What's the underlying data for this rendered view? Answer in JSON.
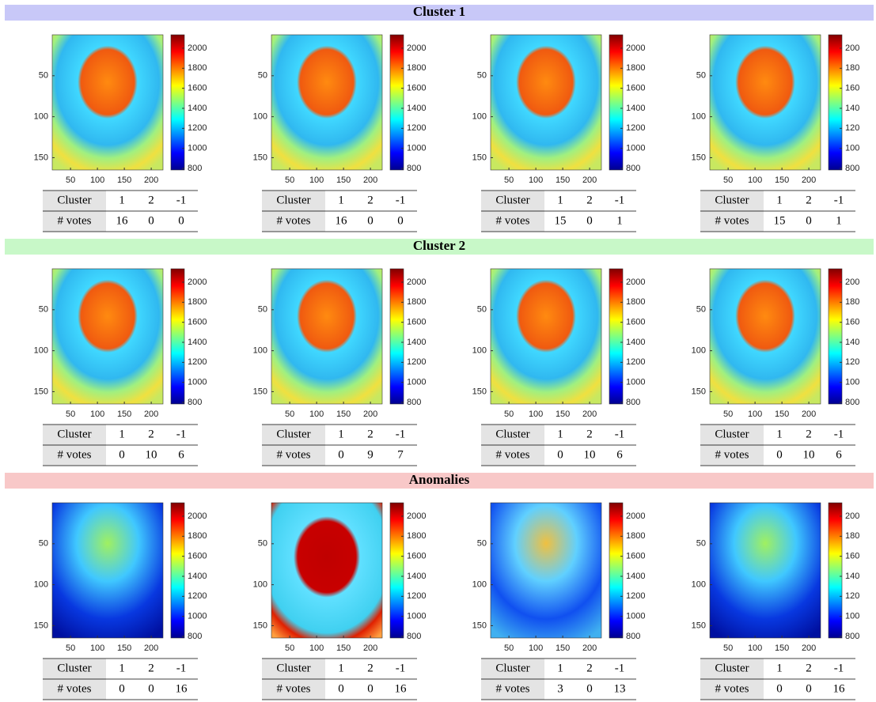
{
  "image_xticks": [
    50,
    100,
    150,
    200
  ],
  "image_yticks": [
    50,
    100,
    150
  ],
  "sections": [
    {
      "title": "Cluster 1",
      "panels": [
        {
          "colorbar_ticks": [
            2000,
            1800,
            1600,
            1400,
            1200,
            1000,
            800
          ],
          "table": {
            "header": [
              "Cluster",
              "1",
              "2",
              "-1"
            ],
            "votes": [
              "# votes",
              "16",
              "0",
              "0"
            ]
          }
        },
        {
          "colorbar_ticks": [
            2000,
            1800,
            1600,
            1400,
            1200,
            1000,
            800
          ],
          "table": {
            "header": [
              "Cluster",
              "1",
              "2",
              "-1"
            ],
            "votes": [
              "# votes",
              "16",
              "0",
              "0"
            ]
          }
        },
        {
          "colorbar_ticks": [
            2000,
            1800,
            1600,
            1400,
            1200,
            1000,
            800
          ],
          "table": {
            "header": [
              "Cluster",
              "1",
              "2",
              "-1"
            ],
            "votes": [
              "# votes",
              "15",
              "0",
              "1"
            ]
          }
        },
        {
          "colorbar_ticks": [
            200,
            180,
            160,
            140,
            120,
            100,
            800
          ],
          "table": {
            "header": [
              "Cluster",
              "1",
              "2",
              "-1"
            ],
            "votes": [
              "# votes",
              "15",
              "0",
              "1"
            ]
          }
        }
      ]
    },
    {
      "title": "Cluster 2",
      "panels": [
        {
          "colorbar_ticks": [
            2000,
            1800,
            1600,
            1400,
            1200,
            1000,
            800
          ],
          "table": {
            "header": [
              "Cluster",
              "1",
              "2",
              "-1"
            ],
            "votes": [
              "# votes",
              "0",
              "10",
              "6"
            ]
          }
        },
        {
          "colorbar_ticks": [
            2000,
            1800,
            1600,
            1400,
            1200,
            1000,
            800
          ],
          "table": {
            "header": [
              "Cluster",
              "1",
              "2",
              "-1"
            ],
            "votes": [
              "# votes",
              "0",
              "9",
              "7"
            ]
          }
        },
        {
          "colorbar_ticks": [
            2000,
            1800,
            1600,
            1400,
            1200,
            1000,
            800
          ],
          "table": {
            "header": [
              "Cluster",
              "1",
              "2",
              "-1"
            ],
            "votes": [
              "# votes",
              "0",
              "10",
              "6"
            ]
          }
        },
        {
          "colorbar_ticks": [
            200,
            180,
            160,
            140,
            120,
            100,
            800
          ],
          "table": {
            "header": [
              "Cluster",
              "1",
              "2",
              "-1"
            ],
            "votes": [
              "# votes",
              "0",
              "10",
              "6"
            ]
          }
        }
      ]
    },
    {
      "title": "Anomalies",
      "panels": [
        {
          "colorbar_ticks": [
            2000,
            1800,
            1600,
            1400,
            1200,
            1000,
            800
          ],
          "table": {
            "header": [
              "Cluster",
              "1",
              "2",
              "-1"
            ],
            "votes": [
              "# votes",
              "0",
              "0",
              "16"
            ]
          }
        },
        {
          "colorbar_ticks": [
            2000,
            1800,
            1600,
            1400,
            1200,
            1000,
            800
          ],
          "table": {
            "header": [
              "Cluster",
              "1",
              "2",
              "-1"
            ],
            "votes": [
              "# votes",
              "0",
              "0",
              "16"
            ]
          }
        },
        {
          "colorbar_ticks": [
            2000,
            1800,
            1600,
            1400,
            1200,
            1000,
            800
          ],
          "table": {
            "header": [
              "Cluster",
              "1",
              "2",
              "-1"
            ],
            "votes": [
              "# votes",
              "3",
              "0",
              "13"
            ]
          }
        },
        {
          "colorbar_ticks": [
            200,
            180,
            160,
            140,
            120,
            100,
            800
          ],
          "table": {
            "header": [
              "Cluster",
              "1",
              "2",
              "-1"
            ],
            "votes": [
              "# votes",
              "0",
              "0",
              "16"
            ]
          }
        }
      ]
    }
  ]
}
